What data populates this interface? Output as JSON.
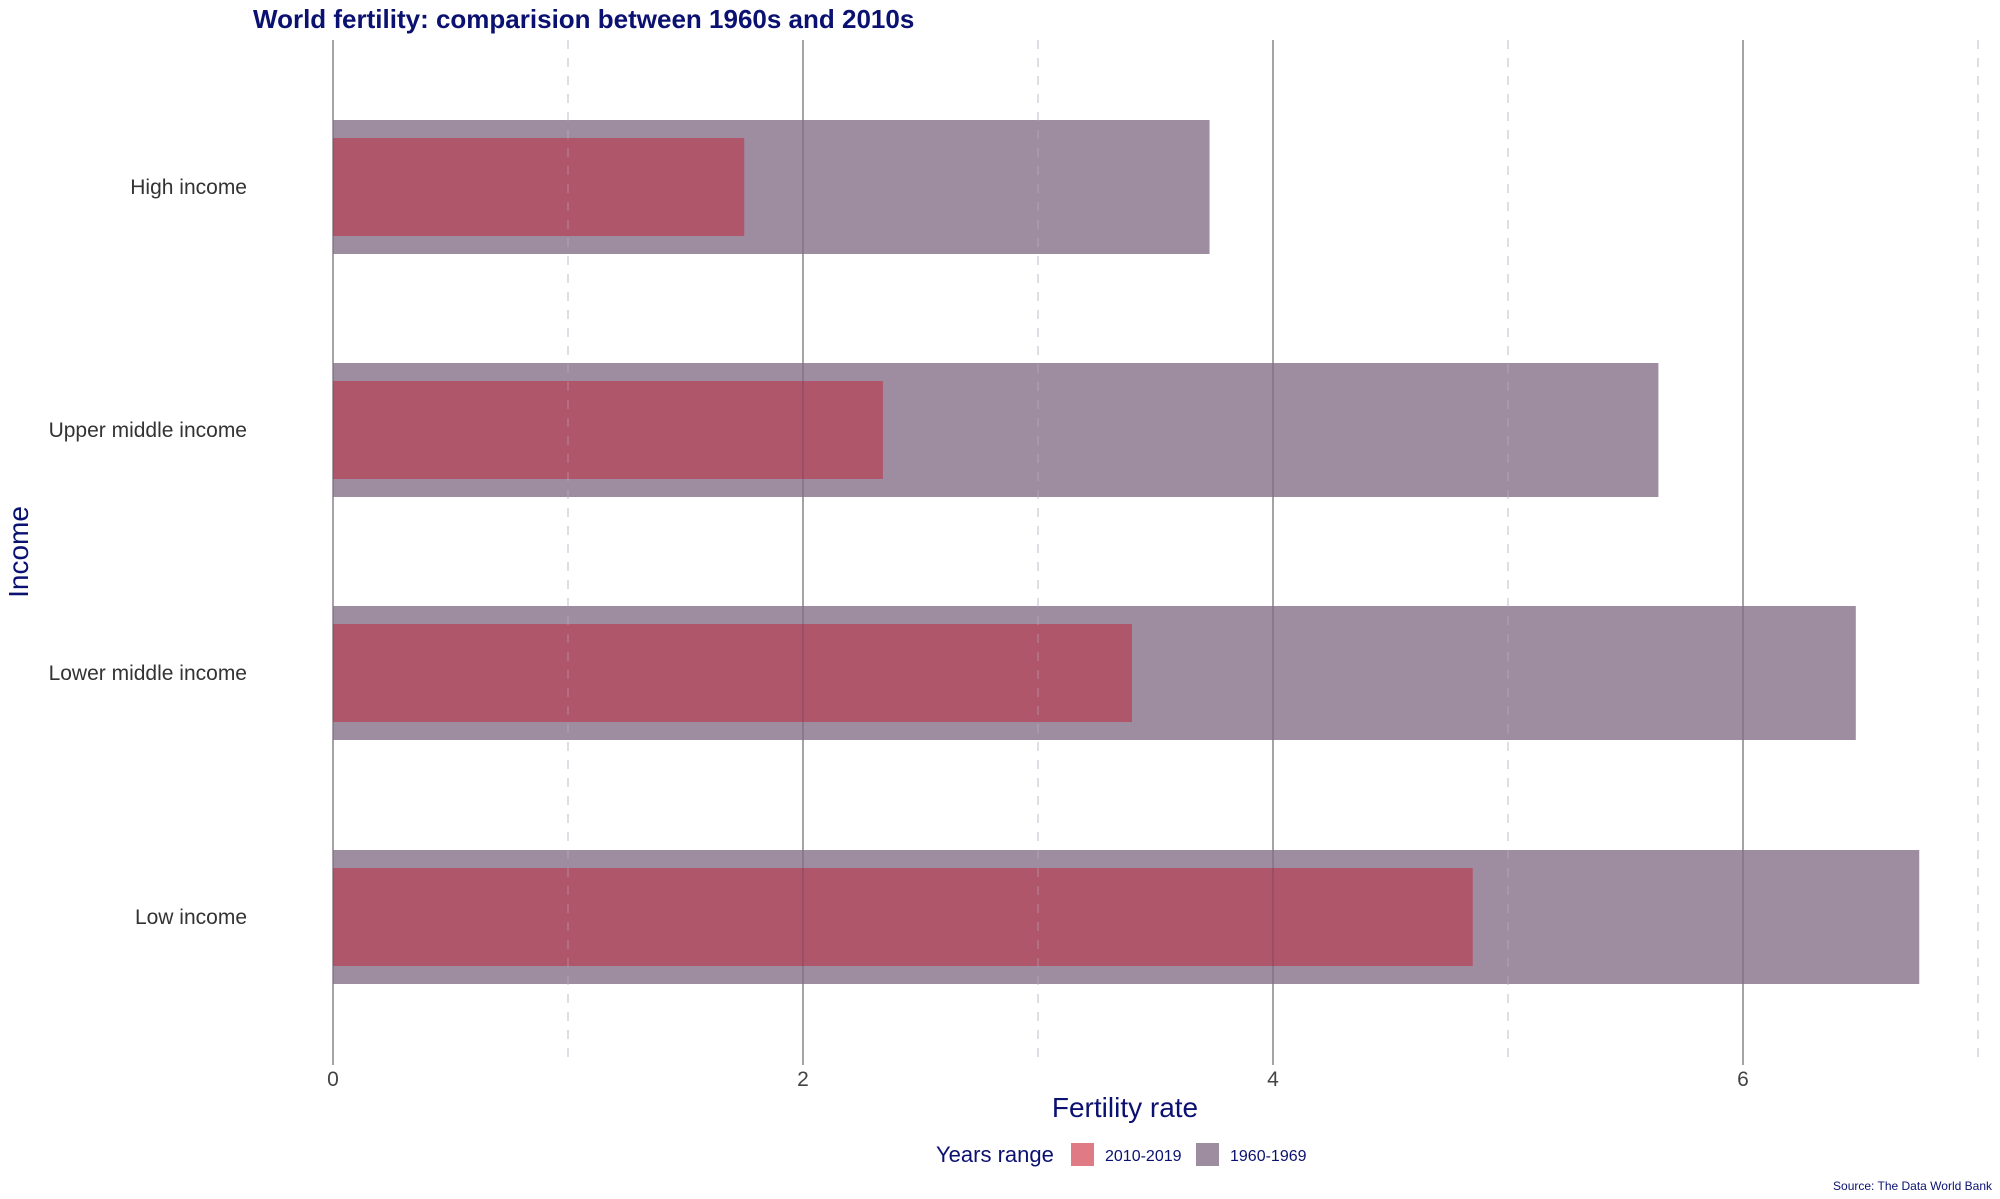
{
  "chart_data": {
    "type": "bar",
    "orientation": "horizontal",
    "title": "World fertility: comparision between 1960s and 2010s",
    "xlabel": "Fertility rate",
    "ylabel": "Income",
    "xlim": [
      0,
      7
    ],
    "x_ticks": [
      "0",
      "2",
      "4",
      "6"
    ],
    "grid": true,
    "categories": [
      "High income",
      "Upper middle income",
      "Lower middle income",
      "Low income"
    ],
    "series": [
      {
        "name": "1960-1969",
        "values": [
          3.73,
          5.64,
          6.48,
          6.75
        ],
        "color": "#9e8da0"
      },
      {
        "name": "2010-2019",
        "values": [
          1.75,
          2.34,
          3.4,
          4.85
        ],
        "color": "#b0566b"
      }
    ],
    "legend": {
      "title": "Years range",
      "position": "bottom",
      "items": [
        {
          "label": "2010-2019",
          "color": "#e07a84"
        },
        {
          "label": "1960-1969",
          "color": "#9e8da0"
        }
      ]
    },
    "caption": "Source: The Data World Bank"
  }
}
